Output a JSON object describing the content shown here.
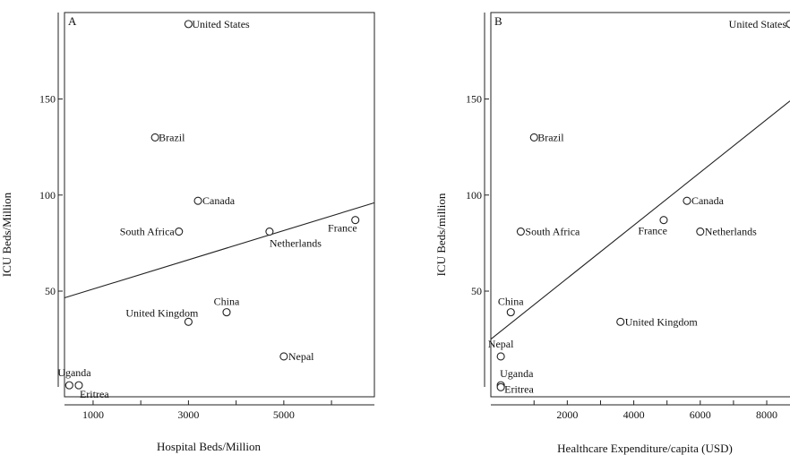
{
  "chart_data": [
    {
      "type": "scatter",
      "panel": "A",
      "xlabel": "Hospital Beds/Million",
      "ylabel": "ICU Beds/Million",
      "xlim": [
        400,
        6900
      ],
      "ylim": [
        -5,
        195
      ],
      "xticks": [
        1000,
        3000,
        5000
      ],
      "xminor": [
        2000,
        4000,
        6000
      ],
      "yticks": [
        50,
        100,
        150
      ],
      "points": [
        {
          "label": "United States",
          "x": 3000,
          "y": 189
        },
        {
          "label": "Brazil",
          "x": 2300,
          "y": 130
        },
        {
          "label": "Canada",
          "x": 3200,
          "y": 97
        },
        {
          "label": "South Africa",
          "x": 2800,
          "y": 81
        },
        {
          "label": "Netherlands",
          "x": 4700,
          "y": 81
        },
        {
          "label": "France",
          "x": 6500,
          "y": 87
        },
        {
          "label": "China",
          "x": 3800,
          "y": 39
        },
        {
          "label": "United Kingdom",
          "x": 3000,
          "y": 34
        },
        {
          "label": "Nepal",
          "x": 5000,
          "y": 16
        },
        {
          "label": "Uganda",
          "x": 500,
          "y": 1
        },
        {
          "label": "Eritrea",
          "x": 700,
          "y": 1
        }
      ],
      "fit_line": {
        "x": [
          400,
          6900
        ],
        "y": [
          46.5,
          96
        ]
      }
    },
    {
      "type": "scatter",
      "panel": "B",
      "xlabel": "Healthcare Expenditure/capita (USD)",
      "ylabel": "ICU Beds/million",
      "xlim": [
        -300,
        8700
      ],
      "ylim": [
        -5,
        195
      ],
      "xticks": [
        2000,
        4000,
        6000,
        8000
      ],
      "xminor": [
        1000,
        3000,
        5000,
        7000
      ],
      "yticks": [
        50,
        100,
        150
      ],
      "points": [
        {
          "label": "United States",
          "x": 8700,
          "y": 189
        },
        {
          "label": "Brazil",
          "x": 1000,
          "y": 130
        },
        {
          "label": "Canada",
          "x": 5600,
          "y": 97
        },
        {
          "label": "France",
          "x": 4900,
          "y": 87
        },
        {
          "label": "South Africa",
          "x": 600,
          "y": 81
        },
        {
          "label": "Netherlands",
          "x": 6000,
          "y": 81
        },
        {
          "label": "China",
          "x": 300,
          "y": 39
        },
        {
          "label": "United Kingdom",
          "x": 3600,
          "y": 34
        },
        {
          "label": "Nepal",
          "x": 0,
          "y": 16
        },
        {
          "label": "Uganda",
          "x": 0,
          "y": 1
        },
        {
          "label": "Eritrea",
          "x": 0,
          "y": 0
        }
      ],
      "fit_line": {
        "x": [
          -300,
          8700
        ],
        "y": [
          25,
          149
        ]
      }
    }
  ]
}
